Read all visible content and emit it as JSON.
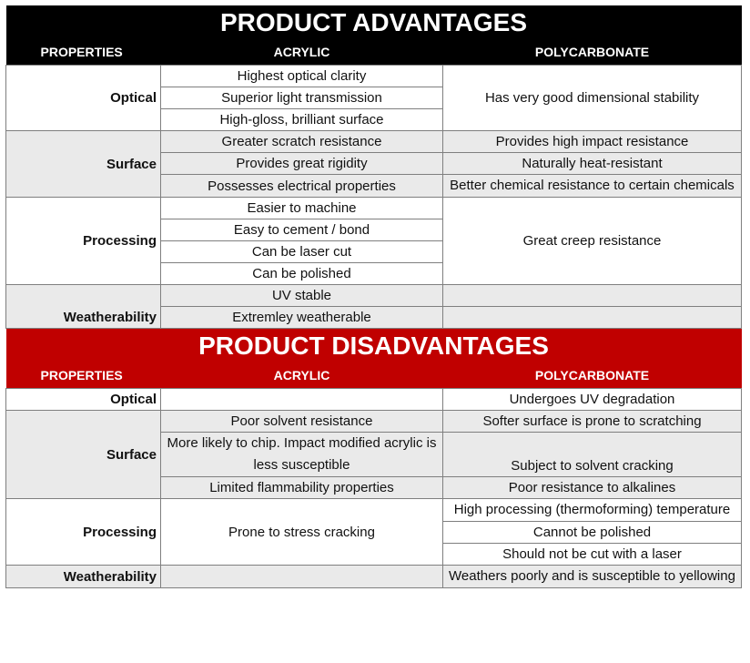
{
  "advantages": {
    "title": "PRODUCT ADVANTAGES",
    "headers": {
      "properties": "PROPERTIES",
      "acrylic": "ACRYLIC",
      "polycarbonate": "POLYCARBONATE"
    },
    "optical": {
      "label": "Optical",
      "acrylic": [
        "Highest optical clarity",
        "Superior light transmission",
        "High-gloss, brilliant surface"
      ],
      "polycarbonate": "Has very good dimensional stability"
    },
    "surface": {
      "label": "Surface",
      "acrylic": [
        "Greater scratch resistance",
        "Provides great rigidity",
        "Possesses electrical properties"
      ],
      "polycarbonate": [
        "Provides high impact resistance",
        "Naturally heat-resistant",
        "Better chemical resistance to certain chemicals"
      ]
    },
    "processing": {
      "label": "Processing",
      "acrylic": [
        "Easier to machine",
        "Easy to cement / bond",
        "Can be laser cut",
        "Can be polished"
      ],
      "polycarbonate": "Great creep resistance"
    },
    "weatherability": {
      "label": "Weatherability",
      "acrylic": [
        "UV stable",
        "Extremley weatherable"
      ],
      "polycarbonate": [
        "",
        ""
      ]
    }
  },
  "disadvantages": {
    "title": "PRODUCT DISADVANTAGES",
    "headers": {
      "properties": "PROPERTIES",
      "acrylic": "ACRYLIC",
      "polycarbonate": "POLYCARBONATE"
    },
    "optical": {
      "label": "Optical",
      "acrylic": "",
      "polycarbonate": "Undergoes UV degradation"
    },
    "surface": {
      "label": "Surface",
      "acrylic": [
        "Poor solvent resistance",
        "More likely to chip. Impact modified acrylic is less susceptible",
        "Limited flammability properties"
      ],
      "polycarbonate": [
        "Softer surface is prone to scratching",
        "Subject to solvent cracking",
        "Poor resistance to alkalines"
      ]
    },
    "processing": {
      "label": "Processing",
      "acrylic": "Prone to stress cracking",
      "polycarbonate": [
        "High processing (thermoforming) temperature",
        "Cannot be polished",
        "Should not be cut with a laser"
      ]
    },
    "weatherability": {
      "label": "Weatherability",
      "acrylic": "",
      "polycarbonate": "Weathers poorly and is susceptible to yellowing"
    }
  }
}
